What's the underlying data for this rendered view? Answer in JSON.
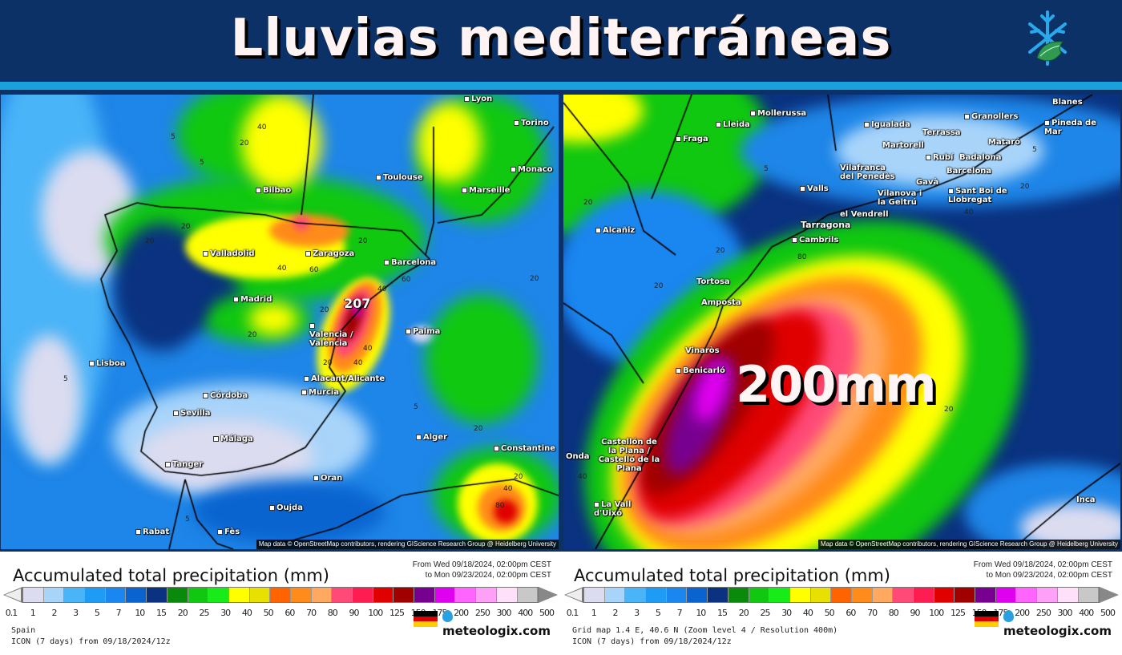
{
  "header": {
    "title": "Lluvias mediterráneas",
    "logo_icon": "snowflake-leaf-icon",
    "background": "#0b3166",
    "strip": "#1aa0dc"
  },
  "map_left": {
    "cities": [
      "Lyon",
      "Torino",
      "Toulouse",
      "Monaco",
      "Marseille",
      "Bilbao",
      "Valladolid",
      "Zaragoza",
      "Barcelona",
      "Madrid",
      "Valencia / València",
      "Palma",
      "Lisboa",
      "Alacant/Alicante",
      "Murcia",
      "Córdoba",
      "Sevilla",
      "Málaga",
      "Alger",
      "Constantine",
      "Tanger",
      "Oran",
      "Oujda",
      "Rabat",
      "Fès"
    ],
    "contours": [
      "40",
      "20",
      "5",
      "5",
      "20",
      "20",
      "40",
      "60",
      "20",
      "40",
      "20",
      "40",
      "60",
      "20",
      "20",
      "20",
      "40",
      "5",
      "5",
      "20",
      "20",
      "40",
      "80",
      "5"
    ],
    "peak_value": "207",
    "attribution": "Map data © OpenStreetMap contributors, rendering GIScience Research Group @ Heidelberg University"
  },
  "map_right": {
    "cities": [
      "Lleida",
      "Mollerussa",
      "Fraga",
      "Igualada",
      "Granollers",
      "Terrassa",
      "Mataró",
      "Blanes",
      "Pineda de Mar",
      "Martorell",
      "Rubí",
      "Badalona",
      "Vilafranca del Penedès",
      "Barcelona",
      "Valls",
      "Gavà",
      "Sant Boi de Llobregat",
      "Vilanova i la Geltrú",
      "el Vendrell",
      "Alcañiz",
      "Tarragona",
      "Cambrils",
      "Tortosa",
      "Amposta",
      "Vinaròs",
      "Benicarló",
      "Castellón de la Plana / Castelló de la Plana",
      "Onda",
      "La Vall d'Uixó",
      "Inca"
    ],
    "contours": [
      "20",
      "20",
      "20",
      "5",
      "5",
      "20",
      "40",
      "80",
      "20",
      "40"
    ],
    "headline": "200mm",
    "attribution": "Map data © OpenStreetMap contributors, rendering GIScience Research Group @ Heidelberg University"
  },
  "legend": {
    "title": "Accumulated total precipitation (mm)",
    "from": "From Wed 09/18/2024, 02:00pm CEST",
    "to": "to Mon 09/23/2024, 02:00pm CEST",
    "labels": [
      "0.1",
      "1",
      "2",
      "3",
      "5",
      "7",
      "10",
      "15",
      "20",
      "25",
      "30",
      "40",
      "50",
      "60",
      "70",
      "80",
      "90",
      "100",
      "125",
      "150",
      "175",
      "200",
      "250",
      "300",
      "400",
      "500"
    ],
    "colors": [
      "#dcdcf0",
      "#a8d4fa",
      "#4ab4f8",
      "#1e9cf5",
      "#1a86f0",
      "#0a64d0",
      "#0a3280",
      "#0a8a0a",
      "#10c810",
      "#18ec18",
      "#ffff00",
      "#e8e000",
      "#ff6400",
      "#ff8c1a",
      "#ffa860",
      "#ff4a78",
      "#ff1c50",
      "#e00000",
      "#a00000",
      "#780090",
      "#e000f0",
      "#ff64ff",
      "#ffa0f8",
      "#ffe0fa",
      "#c8c8c8"
    ]
  },
  "footer_left": {
    "region": "Spain",
    "model": "ICON (7 days) from  09/18/2024/12z",
    "brand": "meteologix.com",
    "flag_icon": "germany-flag-icon"
  },
  "footer_right": {
    "region": "Grid map 1.4 E, 40.6 N (Zoom level 4 / Resolution 400m)",
    "model": "ICON (7 days) from  09/18/2024/12z",
    "brand": "meteologix.com",
    "flag_icon": "germany-flag-icon"
  }
}
